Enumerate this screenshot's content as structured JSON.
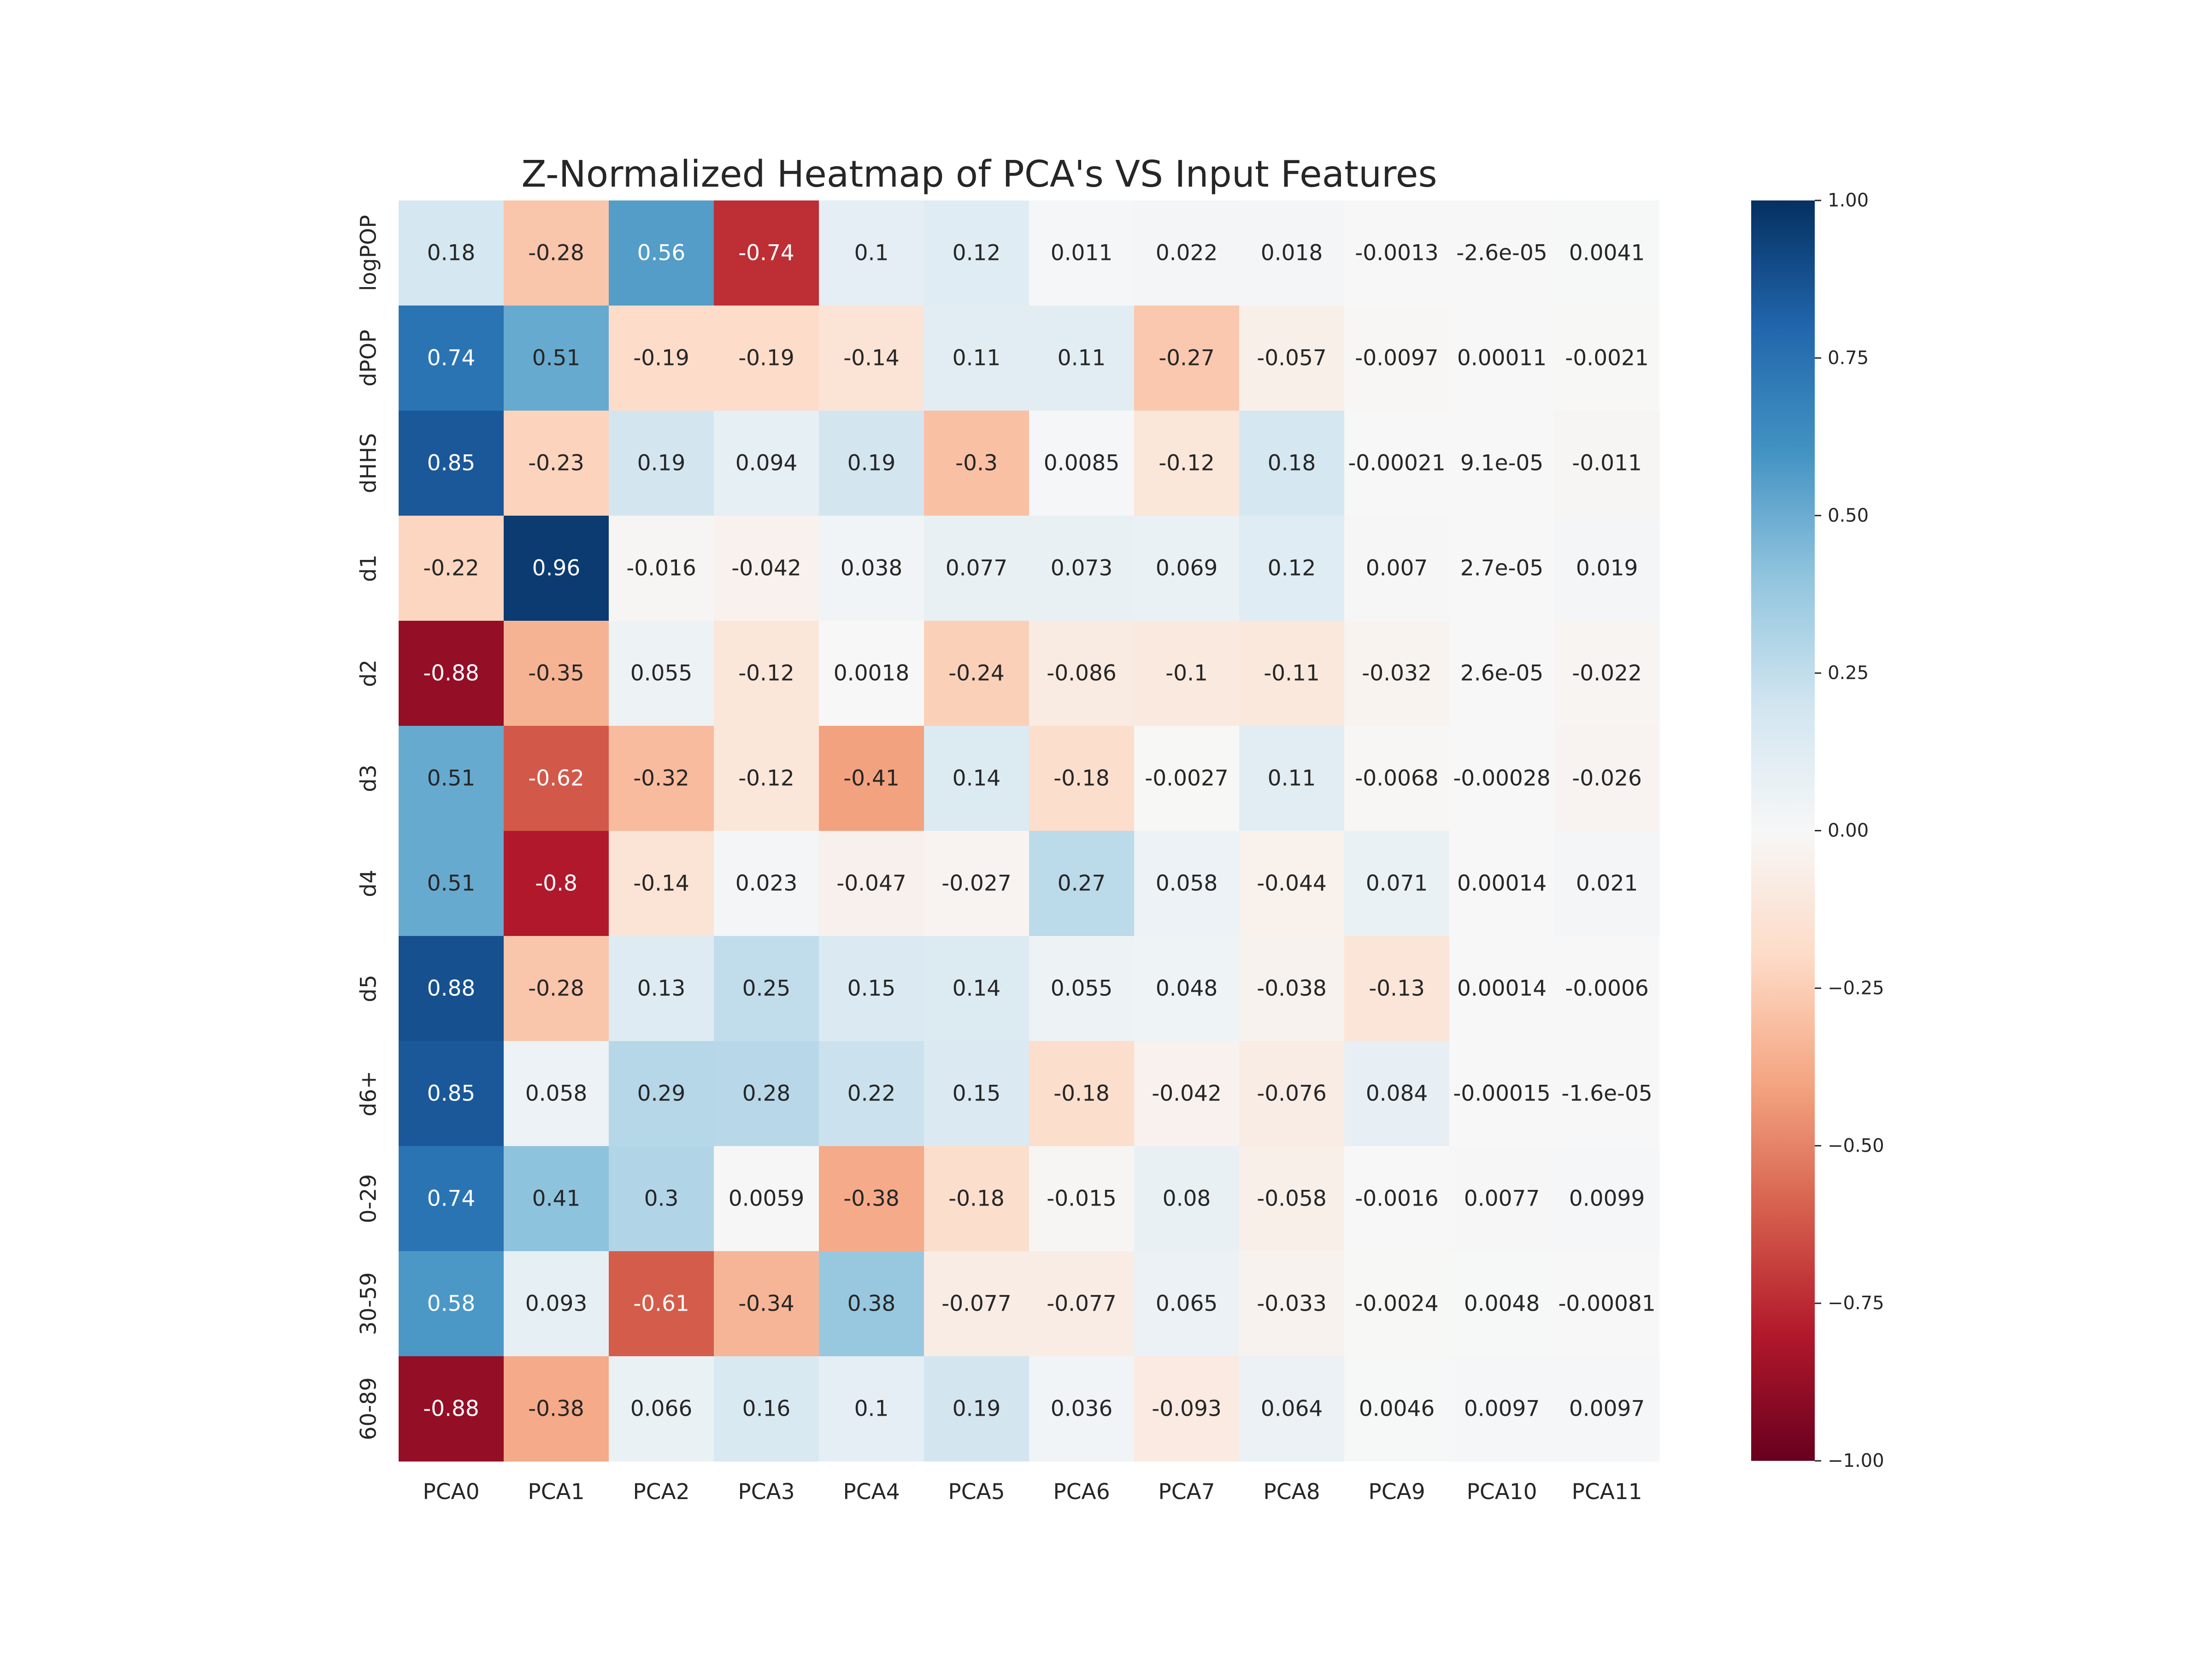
{
  "chart_data": {
    "type": "heatmap",
    "title": "Z-Normalized Heatmap of PCA's VS Input Features",
    "x_labels": [
      "PCA0",
      "PCA1",
      "PCA2",
      "PCA3",
      "PCA4",
      "PCA5",
      "PCA6",
      "PCA7",
      "PCA8",
      "PCA9",
      "PCA10",
      "PCA11"
    ],
    "y_labels": [
      "logPOP",
      "dPOP",
      "dHHS",
      "d1",
      "d2",
      "d3",
      "d4",
      "d5",
      "d6+",
      "0-29",
      "30-59",
      "60-89"
    ],
    "values": [
      [
        0.18,
        -0.28,
        0.56,
        -0.74,
        0.1,
        0.12,
        0.011,
        0.022,
        0.018,
        -0.0013,
        -2.6e-05,
        0.0041
      ],
      [
        0.74,
        0.51,
        -0.19,
        -0.19,
        -0.14,
        0.11,
        0.11,
        -0.27,
        -0.057,
        -0.0097,
        0.00011,
        -0.0021
      ],
      [
        0.85,
        -0.23,
        0.19,
        0.094,
        0.19,
        -0.3,
        0.0085,
        -0.12,
        0.18,
        -0.00021,
        9.1e-05,
        -0.011
      ],
      [
        -0.22,
        0.96,
        -0.016,
        -0.042,
        0.038,
        0.077,
        0.073,
        0.069,
        0.12,
        0.007,
        2.7e-05,
        0.019
      ],
      [
        -0.88,
        -0.35,
        0.055,
        -0.12,
        0.0018,
        -0.24,
        -0.086,
        -0.1,
        -0.11,
        -0.032,
        2.6e-05,
        -0.022
      ],
      [
        0.51,
        -0.62,
        -0.32,
        -0.12,
        -0.41,
        0.14,
        -0.18,
        -0.0027,
        0.11,
        -0.0068,
        -0.00028,
        -0.026
      ],
      [
        0.51,
        -0.8,
        -0.14,
        0.023,
        -0.047,
        -0.027,
        0.27,
        0.058,
        -0.044,
        0.071,
        0.00014,
        0.021
      ],
      [
        0.88,
        -0.28,
        0.13,
        0.25,
        0.15,
        0.14,
        0.055,
        0.048,
        -0.038,
        -0.13,
        0.00014,
        -0.0006
      ],
      [
        0.85,
        0.058,
        0.29,
        0.28,
        0.22,
        0.15,
        -0.18,
        -0.042,
        -0.076,
        0.084,
        -0.00015,
        -1.6e-05
      ],
      [
        0.74,
        0.41,
        0.3,
        0.0059,
        -0.38,
        -0.18,
        -0.015,
        0.08,
        -0.058,
        -0.0016,
        0.0077,
        0.0099
      ],
      [
        0.58,
        0.093,
        -0.61,
        -0.34,
        0.38,
        -0.077,
        -0.077,
        0.065,
        -0.033,
        -0.0024,
        0.0048,
        -0.00081
      ],
      [
        -0.88,
        -0.38,
        0.066,
        0.16,
        0.1,
        0.19,
        0.036,
        -0.093,
        0.064,
        0.0046,
        0.0097,
        0.0097
      ]
    ],
    "cell_labels": [
      [
        "0.18",
        "-0.28",
        "0.56",
        "-0.74",
        "0.1",
        "0.12",
        "0.011",
        "0.022",
        "0.018",
        "-0.0013",
        "-2.6e-05",
        "0.0041"
      ],
      [
        "0.74",
        "0.51",
        "-0.19",
        "-0.19",
        "-0.14",
        "0.11",
        "0.11",
        "-0.27",
        "-0.057",
        "-0.0097",
        "0.00011",
        "-0.0021"
      ],
      [
        "0.85",
        "-0.23",
        "0.19",
        "0.094",
        "0.19",
        "-0.3",
        "0.0085",
        "-0.12",
        "0.18",
        "-0.00021",
        "9.1e-05",
        "-0.011"
      ],
      [
        "-0.22",
        "0.96",
        "-0.016",
        "-0.042",
        "0.038",
        "0.077",
        "0.073",
        "0.069",
        "0.12",
        "0.007",
        "2.7e-05",
        "0.019"
      ],
      [
        "-0.88",
        "-0.35",
        "0.055",
        "-0.12",
        "0.0018",
        "-0.24",
        "-0.086",
        "-0.1",
        "-0.11",
        "-0.032",
        "2.6e-05",
        "-0.022"
      ],
      [
        "0.51",
        "-0.62",
        "-0.32",
        "-0.12",
        "-0.41",
        "0.14",
        "-0.18",
        "-0.0027",
        "0.11",
        "-0.0068",
        "-0.00028",
        "-0.026"
      ],
      [
        "0.51",
        "-0.8",
        "-0.14",
        "0.023",
        "-0.047",
        "-0.027",
        "0.27",
        "0.058",
        "-0.044",
        "0.071",
        "0.00014",
        "0.021"
      ],
      [
        "0.88",
        "-0.28",
        "0.13",
        "0.25",
        "0.15",
        "0.14",
        "0.055",
        "0.048",
        "-0.038",
        "-0.13",
        "0.00014",
        "-0.0006"
      ],
      [
        "0.85",
        "0.058",
        "0.29",
        "0.28",
        "0.22",
        "0.15",
        "-0.18",
        "-0.042",
        "-0.076",
        "0.084",
        "-0.00015",
        "-1.6e-05"
      ],
      [
        "0.74",
        "0.41",
        "0.3",
        "0.0059",
        "-0.38",
        "-0.18",
        "-0.015",
        "0.08",
        "-0.058",
        "-0.0016",
        "0.0077",
        "0.0099"
      ],
      [
        "0.58",
        "0.093",
        "-0.61",
        "-0.34",
        "0.38",
        "-0.077",
        "-0.077",
        "0.065",
        "-0.033",
        "-0.0024",
        "0.0048",
        "-0.00081"
      ],
      [
        "-0.88",
        "-0.38",
        "0.066",
        "0.16",
        "0.1",
        "0.19",
        "0.036",
        "-0.093",
        "0.064",
        "0.0046",
        "0.0097",
        "0.0097"
      ]
    ],
    "colormap": "RdBu",
    "vmin": -1.0,
    "vmax": 1.0,
    "colorbar_ticks": [
      1.0,
      0.75,
      0.5,
      0.25,
      0.0,
      -0.25,
      -0.5,
      -0.75,
      -1.0
    ],
    "colorbar_tick_labels": [
      "1.00",
      "0.75",
      "0.50",
      "0.25",
      "0.00",
      "−0.25",
      "−0.50",
      "−0.75",
      "−1.00"
    ],
    "colorbar_position": "right"
  }
}
